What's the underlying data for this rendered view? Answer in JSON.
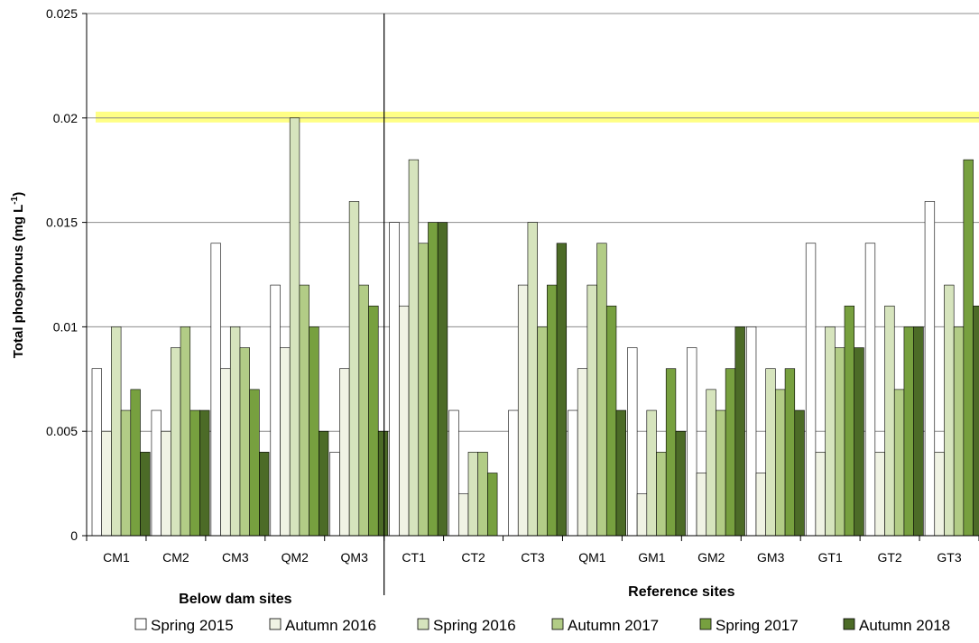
{
  "chart_data": {
    "type": "bar",
    "title": "",
    "xlabel": "",
    "ylabel_main": "Total phosphorus (mg L",
    "ylabel_sup": "-1",
    "ylabel_close": ")",
    "ylim": [
      0,
      0.025
    ],
    "yticks": [
      "0",
      "0.005",
      "0.01",
      "0.015",
      "0.02",
      "0.025"
    ],
    "yticks_values": [
      0,
      0.005,
      0.01,
      0.015,
      0.02,
      0.025
    ],
    "grid": true,
    "legend_position": "bottom",
    "guideline_value": 0.02,
    "guideline_color": "#ffff66",
    "categories": [
      "CM1",
      "CM2",
      "CM3",
      "QM2",
      "QM3",
      "CT1",
      "CT2",
      "CT3",
      "QM1",
      "GM1",
      "GM2",
      "GM3",
      "GT1",
      "GT2",
      "GT3"
    ],
    "groups": [
      {
        "label": "Below dam sites",
        "count": 5
      },
      {
        "label": "Reference sites",
        "count": 10
      }
    ],
    "series": [
      {
        "name": "Spring 2015",
        "color": "#ffffff",
        "values": [
          0.008,
          0.006,
          0.014,
          0.012,
          0.004,
          0.015,
          0.006,
          0.006,
          0.006,
          0.009,
          0.009,
          0.01,
          0.014,
          0.014,
          0.016
        ]
      },
      {
        "name": "Autumn 2016",
        "color": "#f0f3e4",
        "values": [
          0.005,
          0.005,
          0.008,
          0.009,
          0.008,
          0.011,
          0.002,
          0.012,
          0.008,
          0.002,
          0.003,
          0.003,
          0.004,
          0.004,
          0.004
        ]
      },
      {
        "name": "Spring 2016",
        "color": "#d6e4bd",
        "values": [
          0.01,
          0.009,
          0.01,
          0.02,
          0.016,
          0.018,
          0.004,
          0.015,
          0.012,
          0.006,
          0.007,
          0.008,
          0.01,
          0.011,
          0.012
        ]
      },
      {
        "name": "Autumn 2017",
        "color": "#b2cc86",
        "values": [
          0.006,
          0.01,
          0.009,
          0.012,
          0.012,
          0.014,
          0.004,
          0.01,
          0.014,
          0.004,
          0.006,
          0.007,
          0.009,
          0.007,
          0.01
        ]
      },
      {
        "name": "Spring 2017",
        "color": "#77a03f",
        "values": [
          0.007,
          0.006,
          0.007,
          0.01,
          0.011,
          0.015,
          0.003,
          0.012,
          0.011,
          0.008,
          0.008,
          0.008,
          0.011,
          0.01,
          0.018
        ]
      },
      {
        "name": "Autumn 2018",
        "color": "#4c6b27",
        "values": [
          0.004,
          0.006,
          0.004,
          0.005,
          0.005,
          0.015,
          0.0,
          0.014,
          0.006,
          0.005,
          0.01,
          0.006,
          0.009,
          0.01,
          0.011
        ]
      }
    ]
  }
}
